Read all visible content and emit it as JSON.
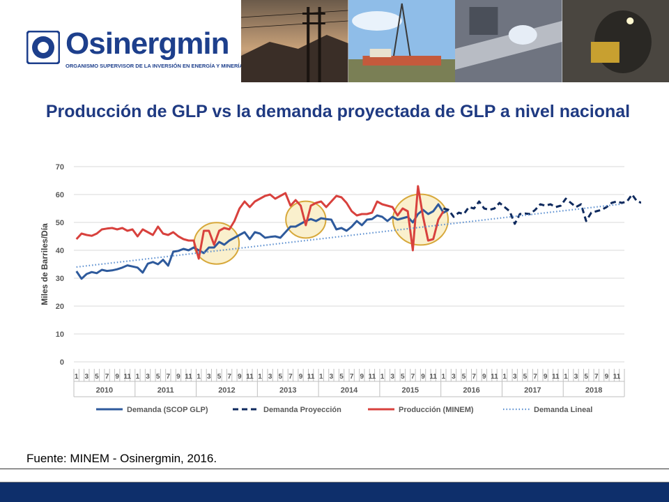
{
  "logo": {
    "name": "Osinergmin",
    "tagline": "ORGANISMO SUPERVISOR DE LA INVERSIÓN EN ENERGÍA Y MINERÍA",
    "brand_color": "#1d3f8c"
  },
  "slide": {
    "title": "Producción de GLP vs la demanda proyectada de GLP a nivel nacional",
    "source": "Fuente: MINEM - Osinergmin, 2016."
  },
  "colors": {
    "demanda": "#2e5a9c",
    "proyeccion": "#0f2a5e",
    "produccion": "#d8413d",
    "lineal": "#5b8fd0",
    "highlight_fill": "#f6e3a4",
    "highlight_stroke": "#d7a83a",
    "footer_bar": "#0e2f6b"
  },
  "chart_data": {
    "type": "line",
    "ylabel": "Miles de Barriles/Día",
    "xlabel": "",
    "ylim": [
      0,
      70
    ],
    "yticks": [
      0,
      10,
      20,
      30,
      40,
      50,
      60,
      70
    ],
    "grid": true,
    "legend": "bottom",
    "years": [
      "2010",
      "2011",
      "2012",
      "2013",
      "2014",
      "2015",
      "2016",
      "2017",
      "2018"
    ],
    "month_ticks": [
      "1",
      "3",
      "5",
      "7",
      "9",
      "11"
    ],
    "series": [
      {
        "name": "Demanda (SCOP GLP)",
        "style": "solid",
        "values": [
          32.5,
          29.8,
          31.5,
          32.2,
          31.8,
          33.0,
          32.6,
          32.8,
          33.2,
          33.8,
          34.6,
          34.2,
          33.8,
          32.0,
          35.2,
          35.8,
          35.0,
          36.6,
          34.5,
          39.5,
          39.8,
          40.5,
          40.0,
          41.0,
          40.0,
          39.0,
          41.0,
          41.0,
          43.0,
          42.0,
          43.5,
          44.5,
          45.5,
          46.5,
          44.0,
          46.5,
          46.0,
          44.5,
          44.8,
          45.0,
          44.5,
          46.5,
          48.5,
          48.5,
          49.5,
          50.5,
          51.2,
          50.5,
          51.5,
          51.2,
          51.0,
          47.5,
          48.0,
          47.0,
          48.5,
          50.5,
          49.0,
          51.0,
          51.2,
          52.5,
          52.0,
          50.5,
          52.0,
          51.0,
          51.5,
          52.0,
          50.0,
          53.0,
          54.5,
          53.0,
          54.0,
          56.5,
          53.5,
          54.5
        ]
      },
      {
        "name": "Demanda Proyección",
        "style": "dashed",
        "values": [
          null,
          null,
          null,
          null,
          null,
          null,
          null,
          null,
          null,
          null,
          null,
          null,
          null,
          null,
          null,
          null,
          null,
          null,
          null,
          null,
          null,
          null,
          null,
          null,
          null,
          null,
          null,
          null,
          null,
          null,
          null,
          null,
          null,
          null,
          null,
          null,
          null,
          null,
          null,
          null,
          null,
          null,
          null,
          null,
          null,
          null,
          null,
          null,
          null,
          null,
          null,
          null,
          null,
          null,
          null,
          null,
          null,
          null,
          null,
          null,
          null,
          null,
          null,
          null,
          null,
          null,
          null,
          null,
          null,
          null,
          null,
          null,
          55.0,
          54.5,
          52.0,
          53.5,
          53.0,
          55.5,
          55.0,
          57.5,
          55.0,
          54.5,
          55.0,
          57.0,
          55.5,
          54.0,
          49.5,
          53.0,
          53.2,
          53.0,
          54.5,
          56.5,
          56.0,
          56.5,
          55.5,
          56.0,
          58.5,
          57.0,
          55.5,
          56.5,
          50.5,
          53.5,
          54.0,
          54.5,
          55.5,
          57.0,
          57.5,
          57.0,
          57.5,
          60.0,
          57.5,
          57.0
        ]
      },
      {
        "name": "Producción (MINEM)",
        "style": "solid",
        "values": [
          44.0,
          46.0,
          45.5,
          45.2,
          46.0,
          47.5,
          47.8,
          48.0,
          47.5,
          48.0,
          47.0,
          47.5,
          45.0,
          47.5,
          46.5,
          45.5,
          48.5,
          46.0,
          45.5,
          46.5,
          45.0,
          44.0,
          43.5,
          43.5,
          37.0,
          47.0,
          47.0,
          42.0,
          47.0,
          48.0,
          47.5,
          50.5,
          55.0,
          57.5,
          55.5,
          57.5,
          58.5,
          59.5,
          60.0,
          58.5,
          59.5,
          60.5,
          56.0,
          58.0,
          56.0,
          49.0,
          56.0,
          57.0,
          57.5,
          55.5,
          57.5,
          59.5,
          59.0,
          57.0,
          54.0,
          52.5,
          53.0,
          53.0,
          53.5,
          57.5,
          56.5,
          56.0,
          55.5,
          52.5,
          55.0,
          54.0,
          40.0,
          63.0,
          52.0,
          43.5,
          44.0,
          51.0,
          54.0
        ]
      },
      {
        "name": "Demanda Lineal",
        "style": "dotted",
        "values": [
          34.0,
          56.6
        ]
      }
    ],
    "highlights": [
      {
        "from_index": 25,
        "to_index": 30,
        "center_value": 42.5
      },
      {
        "from_index": 43,
        "to_index": 47,
        "center_value": 51.0
      },
      {
        "from_index": 64,
        "to_index": 71,
        "center_value": 51.0
      }
    ]
  }
}
